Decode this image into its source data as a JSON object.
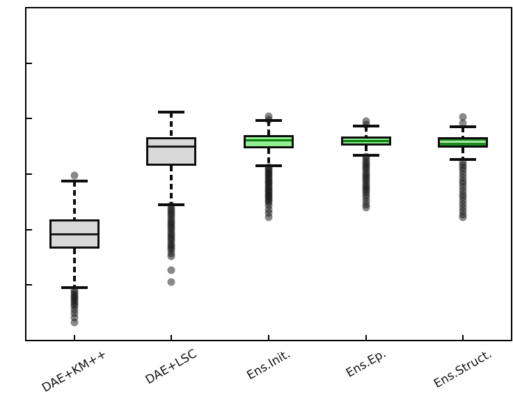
{
  "chart_data": {
    "type": "boxplot",
    "title": "",
    "xlabel": "",
    "ylabel": "",
    "ylim": [
      0.4,
      1.0
    ],
    "yticks": [
      "1.0",
      "0.9",
      "0.8",
      "0.7",
      "0.6",
      "0.5",
      "0.4"
    ],
    "grid": false,
    "legend": "none",
    "x_label_rotation_deg": 30,
    "colors": {
      "frame": "#000000",
      "gray_fill": "#d8d8d8",
      "light_green_fill": "#90ee90",
      "dark_green_fill": "#1f8b1f",
      "dark_median": "#1a1a1a",
      "green_median": "#0a7d0a",
      "pale_green_median": "#a2e8a2",
      "outlier": "#141414",
      "outlier_alpha": 0.5
    },
    "boxes": [
      {
        "label": "DAE+KM++",
        "whisker_low": 0.495,
        "q1": 0.566,
        "median": 0.591,
        "q3": 0.619,
        "whisker_high": 0.687,
        "fill": "#d8d8d8",
        "median_color": "#1a1a1a",
        "outliers_high": [
          0.697
        ],
        "outliers_low": [
          0.49,
          0.4865,
          0.483,
          0.4795,
          0.476,
          0.4725,
          0.469,
          0.4655,
          0.462,
          0.4555,
          0.4485,
          0.441,
          0.433
        ]
      },
      {
        "label": "DAE+LSC",
        "whisker_low": 0.645,
        "q1": 0.715,
        "median": 0.75,
        "q3": 0.766,
        "whisker_high": 0.812,
        "fill": "#d8d8d8",
        "median_color": "#1a1a1a",
        "outliers_high": [],
        "outliers_low": [
          0.643,
          0.639,
          0.635,
          0.631,
          0.627,
          0.623,
          0.619,
          0.615,
          0.611,
          0.607,
          0.603,
          0.599,
          0.595,
          0.591,
          0.587,
          0.583,
          0.579,
          0.575,
          0.571,
          0.567,
          0.563,
          0.5575,
          0.552,
          0.527,
          0.505
        ]
      },
      {
        "label": "Ens.Init.",
        "whisker_low": 0.715,
        "q1": 0.746,
        "median": 0.761,
        "q3": 0.77,
        "whisker_high": 0.797,
        "fill": "#90ee90",
        "median_color": "#0a7d0a",
        "outliers_high": [
          0.804,
          0.798
        ],
        "outliers_low": [
          0.712,
          0.709,
          0.706,
          0.703,
          0.7,
          0.697,
          0.694,
          0.691,
          0.688,
          0.685,
          0.682,
          0.679,
          0.676,
          0.673,
          0.67,
          0.667,
          0.664,
          0.661,
          0.658,
          0.655,
          0.652,
          0.648,
          0.643,
          0.636,
          0.63,
          0.622
        ]
      },
      {
        "label": "Ens.Ep.",
        "whisker_low": 0.734,
        "q1": 0.751,
        "median": 0.76,
        "q3": 0.768,
        "whisker_high": 0.786,
        "fill": "#90ee90",
        "median_color": "#0a7d0a",
        "outliers_high": [
          0.795,
          0.789
        ],
        "outliers_low": [
          0.731,
          0.727,
          0.723,
          0.719,
          0.715,
          0.711,
          0.707,
          0.703,
          0.699,
          0.695,
          0.691,
          0.687,
          0.683,
          0.679,
          0.675,
          0.671,
          0.667,
          0.662,
          0.657,
          0.651,
          0.645,
          0.64
        ]
      },
      {
        "label": "Ens.Struct.",
        "whisker_low": 0.726,
        "q1": 0.748,
        "median": 0.758,
        "q3": 0.767,
        "whisker_high": 0.785,
        "fill": "#1f8b1f",
        "median_color": "#a2e8a2",
        "outliers_high": [
          0.803,
          0.792
        ],
        "outliers_low": [
          0.721,
          0.716,
          0.711,
          0.706,
          0.7,
          0.694,
          0.688,
          0.682,
          0.676,
          0.67,
          0.664,
          0.658,
          0.652,
          0.646,
          0.64,
          0.633,
          0.627,
          0.622
        ]
      }
    ]
  }
}
